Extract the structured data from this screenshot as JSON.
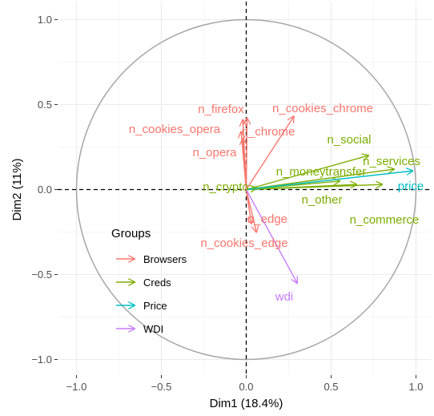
{
  "chart_data": {
    "type": "pca-variable-factor-map",
    "xlabel": "Dim1 (18.4%)",
    "ylabel": "Dim2 (11%)",
    "xlim": [
      -1.0,
      1.0
    ],
    "ylim": [
      -1.0,
      1.0
    ],
    "x_ticks": [
      -1.0,
      -0.5,
      0.0,
      0.5,
      1.0
    ],
    "x_tick_labels": [
      "−1.0",
      "−0.5",
      "0.0",
      "0.5",
      "1.0"
    ],
    "y_ticks": [
      1.0,
      0.5,
      0.0,
      -0.5,
      -1.0
    ],
    "y_tick_labels": [
      "1.0",
      "0.5",
      "0.0",
      "−0.5",
      "−1.0"
    ],
    "grid": true,
    "unit_circle": true,
    "legend": {
      "title": "Groups",
      "placement": "bottom-left",
      "entries": [
        {
          "name": "Browsers",
          "color": "#F8766D"
        },
        {
          "name": "Creds",
          "color": "#7CAE00"
        },
        {
          "name": "Price",
          "color": "#00BFC4"
        },
        {
          "name": "WDI",
          "color": "#C77CFF"
        }
      ]
    },
    "series": [
      {
        "name": "Browsers",
        "color": "#F8766D",
        "vectors": [
          {
            "label": "n_firefox",
            "x": -0.02,
            "y": 0.41
          },
          {
            "label": "n_cookies_chrome",
            "x": 0.28,
            "y": 0.43
          },
          {
            "label": "n_cookies_opera",
            "x": -0.03,
            "y": 0.34
          },
          {
            "label": "n_chrome",
            "x": 0.005,
            "y": 0.42
          },
          {
            "label": "n_opera",
            "x": -0.02,
            "y": 0.3
          },
          {
            "label": "n_edge",
            "x": 0.03,
            "y": -0.2
          },
          {
            "label": "n_cookies_edge",
            "x": 0.06,
            "y": -0.25
          }
        ]
      },
      {
        "name": "Creds",
        "color": "#7CAE00",
        "vectors": [
          {
            "label": "n_social",
            "x": 0.72,
            "y": 0.2
          },
          {
            "label": "n_services",
            "x": 0.87,
            "y": 0.12
          },
          {
            "label": "n_moneytransfer",
            "x": 0.55,
            "y": 0.05
          },
          {
            "label": "n_crypto",
            "x": 0.06,
            "y": 0.01
          },
          {
            "label": "n_other",
            "x": 0.65,
            "y": 0.03
          },
          {
            "label": "n_commerce",
            "x": 0.8,
            "y": 0.03
          }
        ]
      },
      {
        "name": "Price",
        "color": "#00BFC4",
        "vectors": [
          {
            "label": "price",
            "x": 0.98,
            "y": 0.11
          }
        ]
      },
      {
        "name": "WDI",
        "color": "#C77CFF",
        "vectors": [
          {
            "label": "wdi",
            "x": 0.3,
            "y": -0.55
          }
        ]
      }
    ]
  }
}
